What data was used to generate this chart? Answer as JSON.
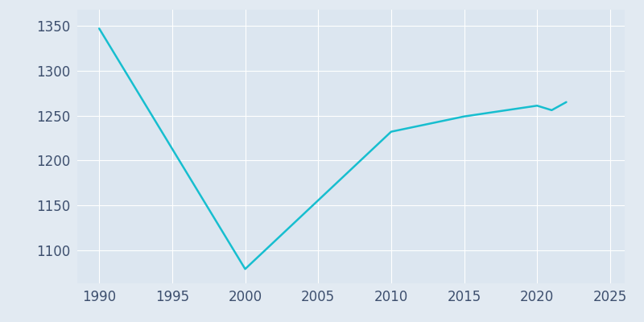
{
  "years": [
    1990,
    2000,
    2010,
    2015,
    2020,
    2021,
    2022
  ],
  "population": [
    1347,
    1079,
    1232,
    1249,
    1261,
    1256,
    1265
  ],
  "line_color": "#17becf",
  "bg_color": "#e2eaf2",
  "plot_bg_color": "#dce6f0",
  "grid_color": "#ffffff",
  "tick_color": "#3d4f6e",
  "xlim": [
    1988.5,
    2026
  ],
  "ylim": [
    1063,
    1368
  ],
  "xticks": [
    1990,
    1995,
    2000,
    2005,
    2010,
    2015,
    2020,
    2025
  ],
  "yticks": [
    1100,
    1150,
    1200,
    1250,
    1300,
    1350
  ],
  "line_width": 1.8,
  "tick_labelsize": 12
}
